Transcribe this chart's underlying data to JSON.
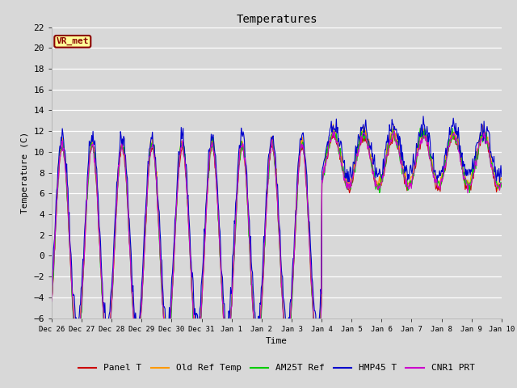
{
  "title": "Temperatures",
  "xlabel": "Time",
  "ylabel": "Temperature (C)",
  "ylim": [
    -6,
    22
  ],
  "yticks": [
    -6,
    -4,
    -2,
    0,
    2,
    4,
    6,
    8,
    10,
    12,
    14,
    16,
    18,
    20,
    22
  ],
  "bg_color": "#d8d8d8",
  "series": {
    "Panel T": {
      "color": "#cc0000",
      "lw": 0.8
    },
    "Old Ref Temp": {
      "color": "#ff9900",
      "lw": 0.8
    },
    "AM25T Ref": {
      "color": "#00cc00",
      "lw": 0.8
    },
    "HMP45 T": {
      "color": "#0000cc",
      "lw": 0.8
    },
    "CNR1 PRT": {
      "color": "#cc00cc",
      "lw": 0.8
    }
  },
  "annotation": {
    "text": "VR_met",
    "fontsize": 8,
    "color": "#8B0000",
    "bbox_facecolor": "#ffff99",
    "bbox_edgecolor": "#8B0000"
  },
  "tick_labels": [
    "Dec 26",
    "Dec 27",
    "Dec 28",
    "Dec 29",
    "Dec 30",
    "Dec 31",
    "Jan 1",
    "Jan 2",
    "Jan 3",
    "Jan 4",
    "Jan 5",
    "Jan 6",
    "Jan 7",
    "Jan 8",
    "Jan 9",
    "Jan 10"
  ],
  "n_points": 720,
  "n_days": 15
}
